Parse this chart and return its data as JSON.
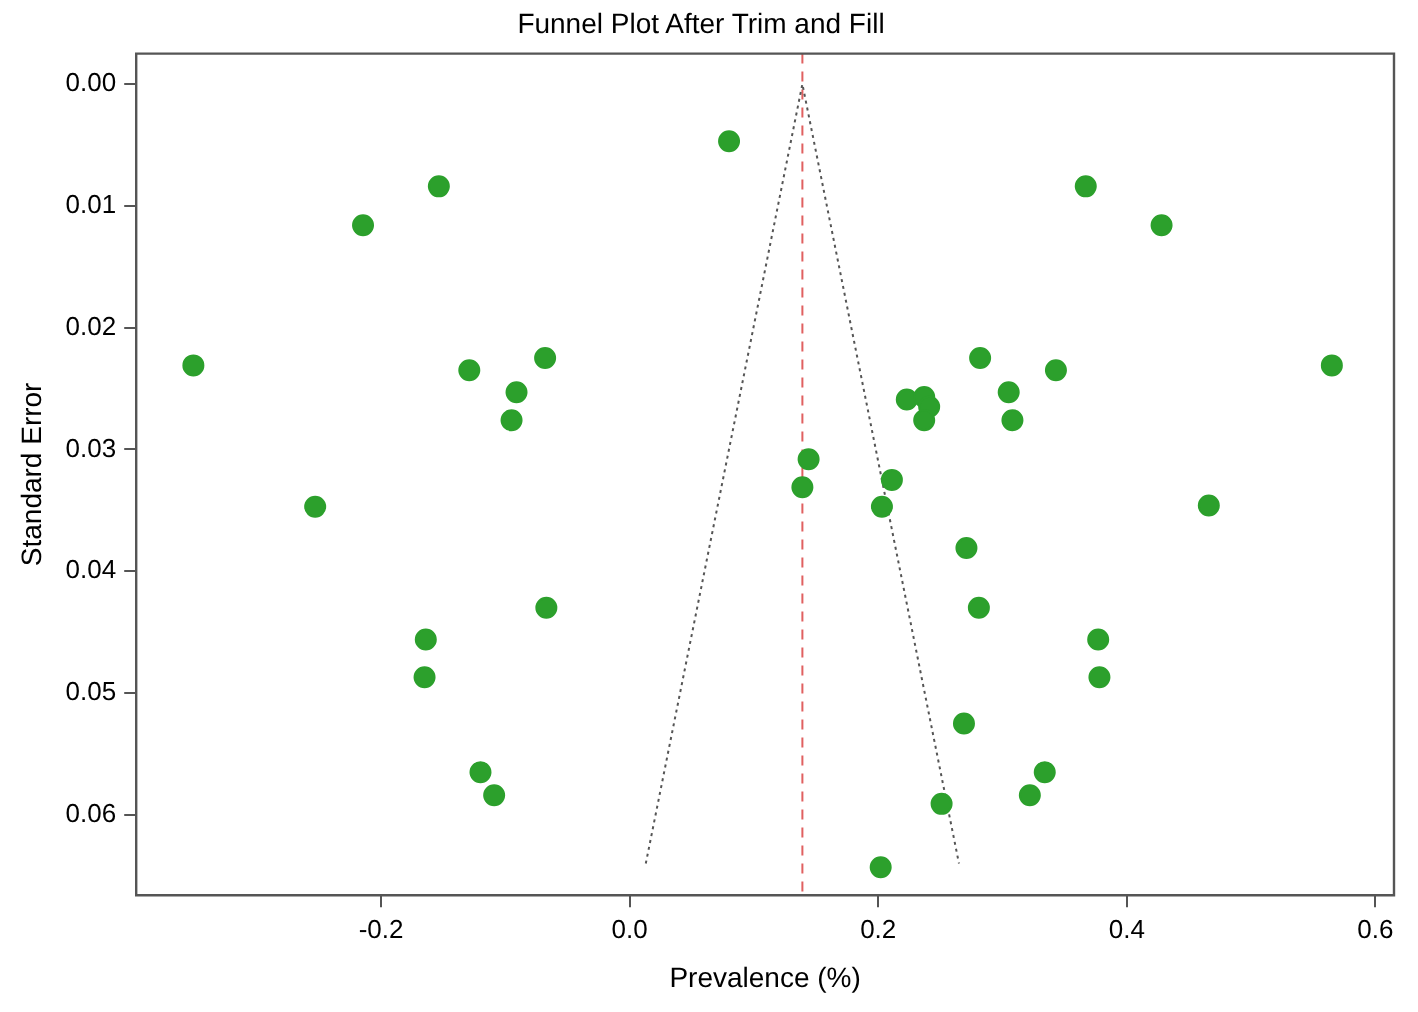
{
  "chart_data": {
    "type": "scatter",
    "title": "Funnel Plot After Trim and Fill",
    "xlabel": "Prevalence (%)",
    "ylabel": "Standard Error",
    "xlim": [
      -0.397,
      0.615
    ],
    "ylim": [
      0.0666,
      -0.0025
    ],
    "xticks": [
      {
        "value": -0.2,
        "label": "-0.2"
      },
      {
        "value": 0,
        "label": "0.0"
      },
      {
        "value": 0.2,
        "label": "0.2"
      },
      {
        "value": 0.4,
        "label": "0.4"
      },
      {
        "value": 0.6,
        "label": "0.6"
      }
    ],
    "yticks": [
      {
        "value": 0,
        "label": "0.00"
      },
      {
        "value": 0.01,
        "label": "0.01"
      },
      {
        "value": 0.02,
        "label": "0.02"
      },
      {
        "value": 0.03,
        "label": "0.03"
      },
      {
        "value": 0.04,
        "label": "0.04"
      },
      {
        "value": 0.05,
        "label": "0.05"
      },
      {
        "value": 0.06,
        "label": "0.06"
      }
    ],
    "grid": false,
    "legend": false,
    "series": [
      {
        "color": "#2ca02c",
        "marker": "circle",
        "x": [
          0.08,
          -0.1535,
          -0.2145,
          -0.351,
          -0.129,
          -0.068,
          -0.091,
          -0.095,
          -0.253,
          -0.067,
          -0.164,
          -0.165,
          -0.12,
          -0.109,
          0.367,
          0.428,
          0.565,
          0.282,
          0.343,
          0.305,
          0.308,
          0.223,
          0.237,
          0.241,
          0.237,
          0.144,
          0.139,
          0.211,
          0.203,
          0.466,
          0.271,
          0.281,
          0.377,
          0.378,
          0.269,
          0.334,
          0.322,
          0.251,
          0.202
        ],
        "values": [
          0.0047,
          0.0084,
          0.0116,
          0.0231,
          0.0235,
          0.0225,
          0.0253,
          0.0276,
          0.0347,
          0.043,
          0.0456,
          0.0487,
          0.0565,
          0.0584,
          0.0084,
          0.0116,
          0.0231,
          0.0225,
          0.0235,
          0.0253,
          0.0276,
          0.0259,
          0.0257,
          0.0265,
          0.0276,
          0.0308,
          0.0331,
          0.0325,
          0.0347,
          0.0346,
          0.0381,
          0.043,
          0.0456,
          0.0487,
          0.0525,
          0.0565,
          0.0584,
          0.0591,
          0.0643
        ]
      },
      {
        "type": "line",
        "color": "#555555",
        "marker": "none",
        "line_style": "dotted",
        "x": [
          0.013,
          0.139,
          0.265
        ],
        "values": [
          0.064,
          0,
          0.064
        ]
      }
    ],
    "ref_lines": [
      {
        "axis": "x",
        "value": 0.139,
        "color": "#e06060",
        "line_style": "dashed"
      }
    ]
  }
}
